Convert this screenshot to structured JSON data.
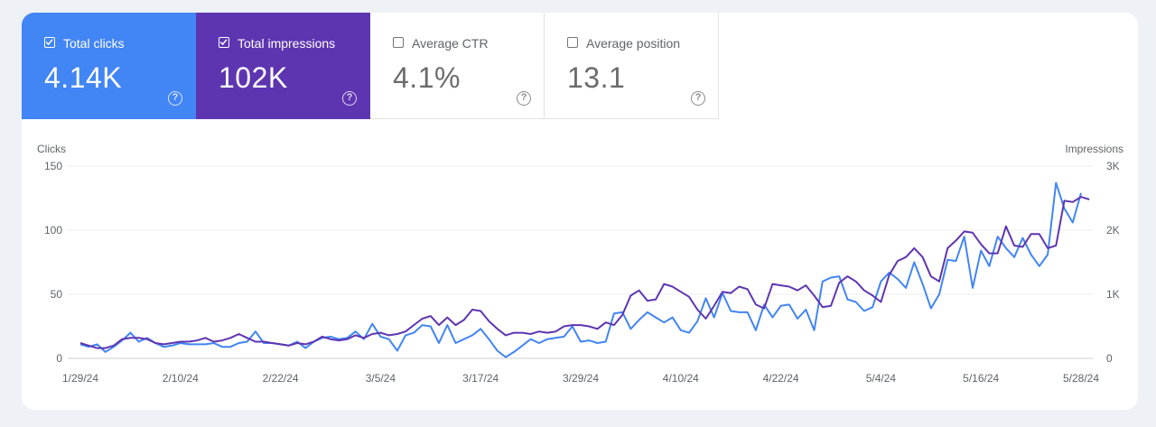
{
  "metrics": {
    "clicks": {
      "label": "Total clicks",
      "value": "4.14K",
      "checked": true,
      "color": "#4285f4"
    },
    "impressions": {
      "label": "Total impressions",
      "value": "102K",
      "checked": true,
      "color": "#5e35b1"
    },
    "ctr": {
      "label": "Average CTR",
      "value": "4.1%",
      "checked": false
    },
    "position": {
      "label": "Average position",
      "value": "13.1",
      "checked": false
    },
    "help_glyph": "?"
  },
  "chart_data": {
    "type": "line",
    "left_axis": {
      "title": "Clicks",
      "ticks": [
        "150",
        "100",
        "50",
        "0"
      ],
      "range": [
        0,
        150
      ]
    },
    "right_axis": {
      "title": "Impressions",
      "ticks": [
        "3K",
        "2K",
        "1K",
        "0"
      ],
      "range": [
        0,
        3000
      ]
    },
    "x_tick_labels": [
      "1/29/24",
      "2/10/24",
      "2/22/24",
      "3/5/24",
      "3/17/24",
      "3/29/24",
      "4/10/24",
      "4/22/24",
      "5/4/24",
      "5/16/24",
      "5/28/24"
    ],
    "x_start": "1/29/24",
    "x_end": "5/29/24",
    "grid": true,
    "series": [
      {
        "axis": "left",
        "color": "#4285f4",
        "values": [
          11,
          9,
          11,
          5,
          9,
          14,
          20,
          13,
          16,
          12,
          9,
          10,
          12,
          11,
          11,
          11,
          12,
          9,
          9,
          12,
          13,
          21,
          12,
          12,
          11,
          10,
          13,
          8,
          13,
          16,
          17,
          15,
          16,
          21,
          15,
          27,
          17,
          15,
          6,
          18,
          20,
          26,
          25,
          12,
          26,
          12,
          15,
          18,
          23,
          15,
          6,
          1,
          5,
          10,
          15,
          12,
          15,
          16,
          17,
          25,
          13,
          14,
          12,
          13,
          35,
          36,
          23,
          30,
          36,
          32,
          28,
          32,
          22,
          20,
          29,
          47,
          32,
          51,
          37,
          36,
          36,
          22,
          42,
          32,
          41,
          42,
          31,
          38,
          22,
          60,
          63,
          64,
          46,
          44,
          37,
          40,
          60,
          67,
          62,
          55,
          75,
          58,
          39,
          50,
          77,
          76,
          95,
          55,
          84,
          72,
          95,
          86,
          79,
          94,
          81,
          72,
          81,
          137,
          117,
          106,
          129
        ]
      },
      {
        "axis": "right",
        "color": "#5e35b1",
        "values": [
          240,
          200,
          160,
          160,
          200,
          300,
          320,
          320,
          300,
          240,
          220,
          240,
          260,
          260,
          280,
          320,
          260,
          280,
          320,
          380,
          320,
          260,
          260,
          240,
          220,
          200,
          240,
          220,
          260,
          340,
          300,
          280,
          300,
          360,
          320,
          380,
          400,
          360,
          380,
          420,
          520,
          620,
          660,
          520,
          640,
          520,
          600,
          760,
          740,
          580,
          460,
          360,
          400,
          400,
          380,
          420,
          400,
          420,
          500,
          520,
          520,
          500,
          460,
          560,
          520,
          680,
          980,
          1060,
          900,
          920,
          1160,
          1120,
          1040,
          960,
          760,
          620,
          820,
          1040,
          1020,
          1120,
          1080,
          840,
          780,
          1160,
          1140,
          1120,
          1060,
          1140,
          980,
          800,
          820,
          1180,
          1280,
          1200,
          1060,
          980,
          880,
          1300,
          1520,
          1580,
          1720,
          1580,
          1280,
          1200,
          1720,
          1840,
          1980,
          1960,
          1780,
          1640,
          1640,
          2060,
          1760,
          1740,
          1940,
          1940,
          1720,
          1760,
          2460,
          2440,
          2520,
          2480
        ]
      }
    ]
  }
}
